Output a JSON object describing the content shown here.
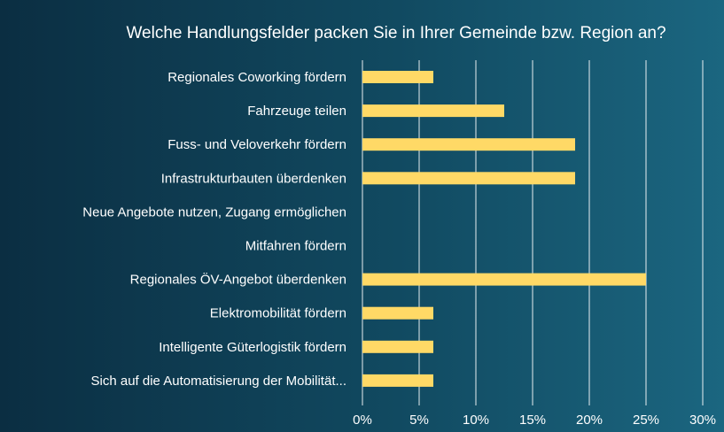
{
  "chart_data": {
    "type": "bar",
    "orientation": "horizontal",
    "title": "Welche Handlungsfelder  packen Sie in Ihrer Gemeinde  bzw. Region an?",
    "categories": [
      "Regionales Coworking fördern",
      "Fahrzeuge teilen",
      "Fuss- und Veloverkehr fördern",
      "Infrastrukturbauten überdenken",
      "Neue Angebote nutzen, Zugang ermöglichen",
      "Mitfahren fördern",
      "Regionales ÖV-Angebot überdenken",
      "Elektromobilität fördern",
      "Intelligente Güterlogistik fördern",
      "Sich auf die Automatisierung der Mobilität..."
    ],
    "values": [
      6.25,
      12.5,
      18.75,
      18.75,
      0,
      0,
      25,
      6.25,
      6.25,
      6.25
    ],
    "xlim": [
      0,
      30
    ],
    "x_ticks": [
      0,
      5,
      10,
      15,
      20,
      25,
      30
    ],
    "x_tick_labels": [
      "0%",
      "5%",
      "10%",
      "15%",
      "20%",
      "25%",
      "30%"
    ],
    "xlabel": "",
    "ylabel": "",
    "grid": true,
    "legend": "none",
    "colors": {
      "bar": "#ffd966",
      "grid": "#ffffff",
      "text": "#ffffff"
    }
  }
}
